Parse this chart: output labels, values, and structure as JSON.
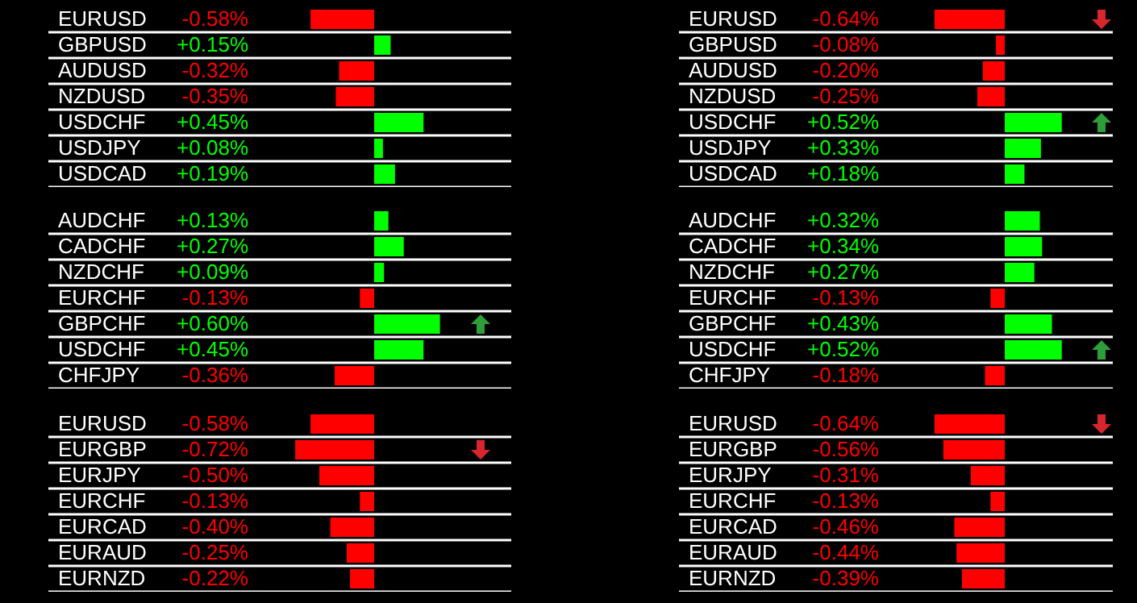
{
  "chart_data": [
    {
      "type": "bar",
      "orientation": "horizontal",
      "tick_labels": "y",
      "grid": "y",
      "categories": [
        "EURUSD",
        "GBPUSD",
        "AUDUSD",
        "NZDUSD",
        "USDCHF",
        "USDJPY",
        "USDCAD"
      ],
      "values": [
        -0.58,
        0.15,
        -0.32,
        -0.35,
        0.45,
        0.08,
        0.19
      ],
      "value_labels": [
        "-0.58%",
        "+0.15%",
        "-0.32%",
        "-0.35%",
        "+0.45%",
        "+0.08%",
        "+0.19%"
      ],
      "colors": [
        "#ff0000",
        "#00ff00",
        "#ff0000",
        "#ff0000",
        "#00ff00",
        "#00ff00",
        "#00ff00"
      ]
    },
    {
      "type": "bar",
      "orientation": "horizontal",
      "tick_labels": "y",
      "grid": "y",
      "categories": [
        "EURUSD",
        "GBPUSD",
        "AUDUSD",
        "NZDUSD",
        "USDCHF",
        "USDJPY",
        "USDCAD"
      ],
      "values": [
        -0.64,
        -0.08,
        -0.2,
        -0.25,
        0.52,
        0.33,
        0.18
      ],
      "value_labels": [
        "-0.64%",
        "-0.08%",
        "-0.20%",
        "-0.25%",
        "+0.52%",
        "+0.33%",
        "+0.18%"
      ],
      "colors": [
        "#ff0000",
        "#ff0000",
        "#ff0000",
        "#ff0000",
        "#00ff00",
        "#00ff00",
        "#00ff00"
      ]
    },
    {
      "type": "bar",
      "orientation": "horizontal",
      "tick_labels": "y",
      "grid": "y",
      "categories": [
        "AUDCHF",
        "CADCHF",
        "NZDCHF",
        "EURCHF",
        "GBPCHF",
        "USDCHF",
        "CHFJPY"
      ],
      "values": [
        0.13,
        0.27,
        0.09,
        -0.13,
        0.6,
        0.45,
        -0.36
      ],
      "value_labels": [
        "+0.13%",
        "+0.27%",
        "+0.09%",
        "-0.13%",
        "+0.60%",
        "+0.45%",
        "-0.36%"
      ],
      "colors": [
        "#00ff00",
        "#00ff00",
        "#00ff00",
        "#ff0000",
        "#00ff00",
        "#00ff00",
        "#ff0000"
      ]
    },
    {
      "type": "bar",
      "orientation": "horizontal",
      "tick_labels": "y",
      "grid": "y",
      "categories": [
        "AUDCHF",
        "CADCHF",
        "NZDCHF",
        "EURCHF",
        "GBPCHF",
        "USDCHF",
        "CHFJPY"
      ],
      "values": [
        0.32,
        0.34,
        0.27,
        -0.13,
        0.43,
        0.52,
        -0.18
      ],
      "value_labels": [
        "+0.32%",
        "+0.34%",
        "+0.27%",
        "-0.13%",
        "+0.43%",
        "+0.52%",
        "-0.18%"
      ],
      "colors": [
        "#00ff00",
        "#00ff00",
        "#00ff00",
        "#ff0000",
        "#00ff00",
        "#00ff00",
        "#ff0000"
      ]
    },
    {
      "type": "bar",
      "orientation": "horizontal",
      "tick_labels": "y",
      "grid": "y",
      "categories": [
        "EURUSD",
        "EURGBP",
        "EURJPY",
        "EURCHF",
        "EURCAD",
        "EURAUD",
        "EURNZD"
      ],
      "values": [
        -0.58,
        -0.72,
        -0.5,
        -0.13,
        -0.4,
        -0.25,
        -0.22
      ],
      "value_labels": [
        "-0.58%",
        "-0.72%",
        "-0.50%",
        "-0.13%",
        "-0.40%",
        "-0.25%",
        "-0.22%"
      ],
      "colors": [
        "#ff0000",
        "#ff0000",
        "#ff0000",
        "#ff0000",
        "#ff0000",
        "#ff0000",
        "#ff0000"
      ]
    },
    {
      "type": "bar",
      "orientation": "horizontal",
      "tick_labels": "y",
      "grid": "y",
      "categories": [
        "EURUSD",
        "EURGBP",
        "EURJPY",
        "EURCHF",
        "EURCAD",
        "EURAUD",
        "EURNZD"
      ],
      "values": [
        -0.64,
        -0.56,
        -0.31,
        -0.13,
        -0.46,
        -0.44,
        -0.39
      ],
      "value_labels": [
        "-0.64%",
        "-0.56%",
        "-0.31%",
        "-0.13%",
        "-0.46%",
        "-0.44%",
        "-0.39%"
      ],
      "colors": [
        "#ff0000",
        "#ff0000",
        "#ff0000",
        "#ff0000",
        "#ff0000",
        "#ff0000",
        "#ff0000"
      ]
    }
  ]
}
